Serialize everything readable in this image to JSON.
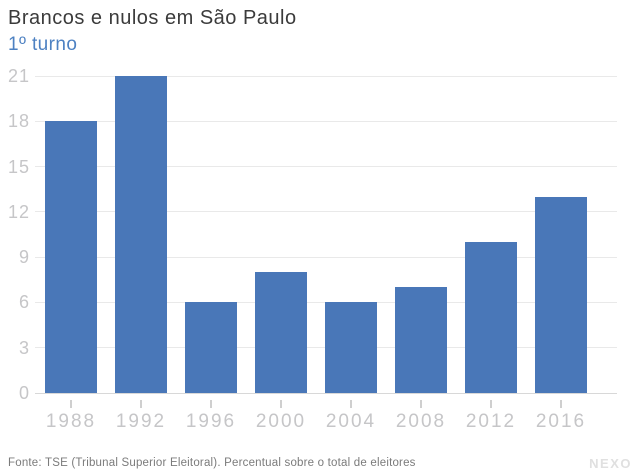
{
  "header": {
    "title": "Brancos e nulos em São Paulo",
    "subtitle": "1º turno"
  },
  "footer": {
    "source": "Fonte: TSE (Tribunal Superior Eleitoral). Percentual sobre o total de eleitores",
    "logo": "NEXO"
  },
  "colors": {
    "bar": "#4977b8",
    "subtitle": "#4d81c2",
    "title": "#3b3b3b",
    "axis_label": "#c6c6c8",
    "gridline": "#e9e9e9",
    "axis_line": "#d8d8d8",
    "tick": "#cfcfcf",
    "footer_text": "#7b7b7b",
    "logo": "#e0e0e0"
  },
  "chart_data": {
    "type": "bar",
    "title": "Brancos e nulos em São Paulo",
    "subtitle": "1º turno",
    "categories": [
      "1988",
      "1992",
      "1996",
      "2000",
      "2004",
      "2008",
      "2012",
      "2016"
    ],
    "values": [
      18,
      21,
      6,
      8,
      6,
      7,
      10,
      13
    ],
    "xlabel": "",
    "ylabel": "",
    "ylim": [
      0,
      21
    ],
    "yticks": [
      0,
      3,
      6,
      9,
      12,
      15,
      18,
      21
    ],
    "grid": true,
    "legend": false,
    "source_note": "Fonte: TSE (Tribunal Superior Eleitoral). Percentual sobre o total de eleitores"
  }
}
